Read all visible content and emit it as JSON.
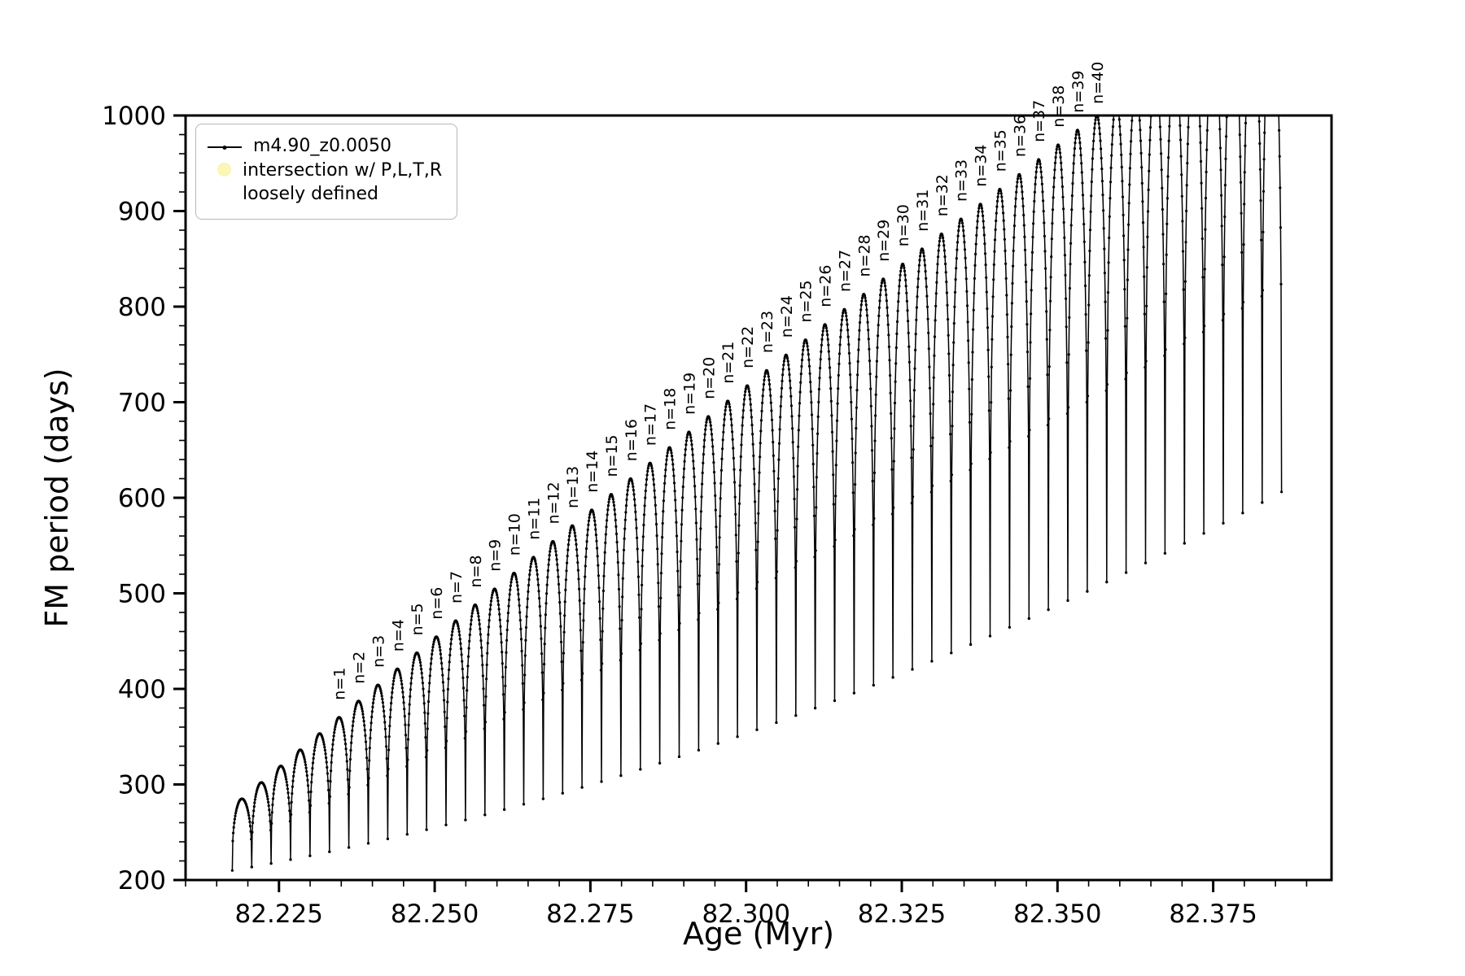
{
  "figure": {
    "background": "#ffffff"
  },
  "chart_data": {
    "type": "line",
    "title": "",
    "xlabel": "Age (Myr)",
    "ylabel": "FM period (days)",
    "xlim": [
      82.21,
      82.394
    ],
    "ylim": [
      200,
      1000
    ],
    "xticks": [
      82.225,
      82.25,
      82.275,
      82.3,
      82.325,
      82.35,
      82.375
    ],
    "xtick_labels": [
      "82.225",
      "82.250",
      "82.275",
      "82.300",
      "82.325",
      "82.350",
      "82.375"
    ],
    "yticks": [
      200,
      300,
      400,
      500,
      600,
      700,
      800,
      900,
      1000
    ],
    "x_minor_step": 0.005,
    "y_minor_step": 20,
    "grid": false,
    "legend_position": "upper left",
    "legend": [
      {
        "label": "m4.90_z0.0050",
        "marker": "line-dot",
        "color": "#000000"
      },
      {
        "label_lines": [
          "intersection w/ P,L,T,R",
          "loosely defined"
        ],
        "marker": "circle",
        "color": "#f9f6b6"
      }
    ],
    "series": [
      {
        "name": "m4.90_z0.0050",
        "color": "#000000",
        "style": "thermal-pulse arches: period rises from trough t0, arcs over peak p, falls to trough t1; peaks above 1000 are clipped by the axis top",
        "pulse_width_myr": 0.00312,
        "arches": [
          {
            "a": 82.2175,
            "t0": 210.0,
            "t1": 213.6,
            "p": 285.0,
            "n": null
          },
          {
            "a": 82.22062,
            "t0": 213.6,
            "t1": 217.4,
            "p": 302.1,
            "n": null
          },
          {
            "a": 82.22374,
            "t0": 217.4,
            "t1": 221.4,
            "p": 319.3,
            "n": null
          },
          {
            "a": 82.22686,
            "t0": 221.4,
            "t1": 225.4,
            "p": 336.3,
            "n": null
          },
          {
            "a": 82.22998,
            "t0": 225.4,
            "t1": 229.6,
            "p": 353.3,
            "n": null
          },
          {
            "a": 82.2331,
            "t0": 229.6,
            "t1": 234.0,
            "p": 370.3,
            "n": "n=1"
          },
          {
            "a": 82.23622,
            "t0": 234.0,
            "t1": 238.4,
            "p": 387.3,
            "n": "n=2"
          },
          {
            "a": 82.23934,
            "t0": 238.4,
            "t1": 243.1,
            "p": 404.2,
            "n": "n=3"
          },
          {
            "a": 82.24246,
            "t0": 243.1,
            "t1": 247.8,
            "p": 421.0,
            "n": "n=4"
          },
          {
            "a": 82.24558,
            "t0": 247.8,
            "t1": 252.7,
            "p": 437.8,
            "n": "n=5"
          },
          {
            "a": 82.2487,
            "t0": 252.7,
            "t1": 257.7,
            "p": 454.6,
            "n": "n=6"
          },
          {
            "a": 82.25182,
            "t0": 257.7,
            "t1": 262.9,
            "p": 471.4,
            "n": "n=7"
          },
          {
            "a": 82.25494,
            "t0": 262.9,
            "t1": 268.2,
            "p": 488.0,
            "n": "n=8"
          },
          {
            "a": 82.25806,
            "t0": 268.2,
            "t1": 273.7,
            "p": 504.7,
            "n": "n=9"
          },
          {
            "a": 82.26118,
            "t0": 273.7,
            "t1": 279.3,
            "p": 521.3,
            "n": "n=10"
          },
          {
            "a": 82.2643,
            "t0": 279.3,
            "t1": 285.0,
            "p": 537.9,
            "n": "n=11"
          },
          {
            "a": 82.26742,
            "t0": 285.0,
            "t1": 290.9,
            "p": 554.4,
            "n": "n=12"
          },
          {
            "a": 82.27054,
            "t0": 290.9,
            "t1": 296.9,
            "p": 570.9,
            "n": "n=13"
          },
          {
            "a": 82.27366,
            "t0": 296.9,
            "t1": 303.0,
            "p": 587.3,
            "n": "n=14"
          },
          {
            "a": 82.27678,
            "t0": 303.0,
            "t1": 309.3,
            "p": 603.7,
            "n": "n=15"
          },
          {
            "a": 82.2799,
            "t0": 309.3,
            "t1": 315.8,
            "p": 620.1,
            "n": "n=16"
          },
          {
            "a": 82.28302,
            "t0": 315.8,
            "t1": 322.3,
            "p": 636.4,
            "n": "n=17"
          },
          {
            "a": 82.28614,
            "t0": 322.3,
            "t1": 329.0,
            "p": 652.7,
            "n": "n=18"
          },
          {
            "a": 82.28926,
            "t0": 329.0,
            "t1": 335.9,
            "p": 668.9,
            "n": "n=19"
          },
          {
            "a": 82.29238,
            "t0": 335.9,
            "t1": 342.9,
            "p": 685.1,
            "n": "n=20"
          },
          {
            "a": 82.2955,
            "t0": 342.9,
            "t1": 350.0,
            "p": 701.3,
            "n": "n=21"
          },
          {
            "a": 82.29862,
            "t0": 350.0,
            "t1": 357.3,
            "p": 717.4,
            "n": "n=22"
          },
          {
            "a": 82.30174,
            "t0": 357.3,
            "t1": 364.7,
            "p": 733.4,
            "n": "n=23"
          },
          {
            "a": 82.30486,
            "t0": 364.7,
            "t1": 372.2,
            "p": 749.5,
            "n": "n=24"
          },
          {
            "a": 82.30798,
            "t0": 372.2,
            "t1": 379.9,
            "p": 765.4,
            "n": "n=25"
          },
          {
            "a": 82.3111,
            "t0": 379.9,
            "t1": 387.7,
            "p": 781.4,
            "n": "n=26"
          },
          {
            "a": 82.31422,
            "t0": 387.7,
            "t1": 395.7,
            "p": 797.3,
            "n": "n=27"
          },
          {
            "a": 82.31734,
            "t0": 395.7,
            "t1": 403.8,
            "p": 813.1,
            "n": "n=28"
          },
          {
            "a": 82.32046,
            "t0": 403.8,
            "t1": 412.0,
            "p": 829.0,
            "n": "n=29"
          },
          {
            "a": 82.32358,
            "t0": 412.0,
            "t1": 420.4,
            "p": 844.7,
            "n": "n=30"
          },
          {
            "a": 82.3267,
            "t0": 420.4,
            "t1": 428.9,
            "p": 860.5,
            "n": "n=31"
          },
          {
            "a": 82.32982,
            "t0": 428.9,
            "t1": 437.6,
            "p": 876.2,
            "n": "n=32"
          },
          {
            "a": 82.33294,
            "t0": 437.6,
            "t1": 446.4,
            "p": 891.8,
            "n": "n=33"
          },
          {
            "a": 82.33606,
            "t0": 446.4,
            "t1": 455.3,
            "p": 907.4,
            "n": "n=34"
          },
          {
            "a": 82.33918,
            "t0": 455.3,
            "t1": 464.4,
            "p": 923.0,
            "n": "n=35"
          },
          {
            "a": 82.3423,
            "t0": 464.4,
            "t1": 473.6,
            "p": 938.5,
            "n": "n=36"
          },
          {
            "a": 82.34542,
            "t0": 473.6,
            "t1": 482.9,
            "p": 954.0,
            "n": "n=37"
          },
          {
            "a": 82.34854,
            "t0": 482.9,
            "t1": 492.4,
            "p": 969.4,
            "n": "n=38"
          },
          {
            "a": 82.35166,
            "t0": 492.4,
            "t1": 502.0,
            "p": 984.8,
            "n": "n=39"
          },
          {
            "a": 82.35478,
            "t0": 502.0,
            "t1": 511.8,
            "p": 1000.2,
            "n": "n=40"
          },
          {
            "a": 82.3579,
            "t0": 511.8,
            "t1": 521.7,
            "p": 1015.5,
            "n": null
          },
          {
            "a": 82.36102,
            "t0": 521.7,
            "t1": 531.8,
            "p": 1030.8,
            "n": null
          },
          {
            "a": 82.36414,
            "t0": 531.8,
            "t1": 541.9,
            "p": 1046.0,
            "n": null
          },
          {
            "a": 82.36726,
            "t0": 541.9,
            "t1": 552.3,
            "p": 1061.2,
            "n": null
          },
          {
            "a": 82.37038,
            "t0": 552.3,
            "t1": 562.7,
            "p": 1076.3,
            "n": null
          },
          {
            "a": 82.3735,
            "t0": 562.7,
            "t1": 573.4,
            "p": 1091.4,
            "n": null
          },
          {
            "a": 82.37662,
            "t0": 573.4,
            "t1": 584.1,
            "p": 1106.4,
            "n": null
          },
          {
            "a": 82.37974,
            "t0": 584.1,
            "t1": 595.0,
            "p": 1121.3,
            "n": null
          },
          {
            "a": 82.38286,
            "t0": 595.0,
            "t1": 606.1,
            "p": 1136.2,
            "n": null
          }
        ]
      }
    ]
  }
}
